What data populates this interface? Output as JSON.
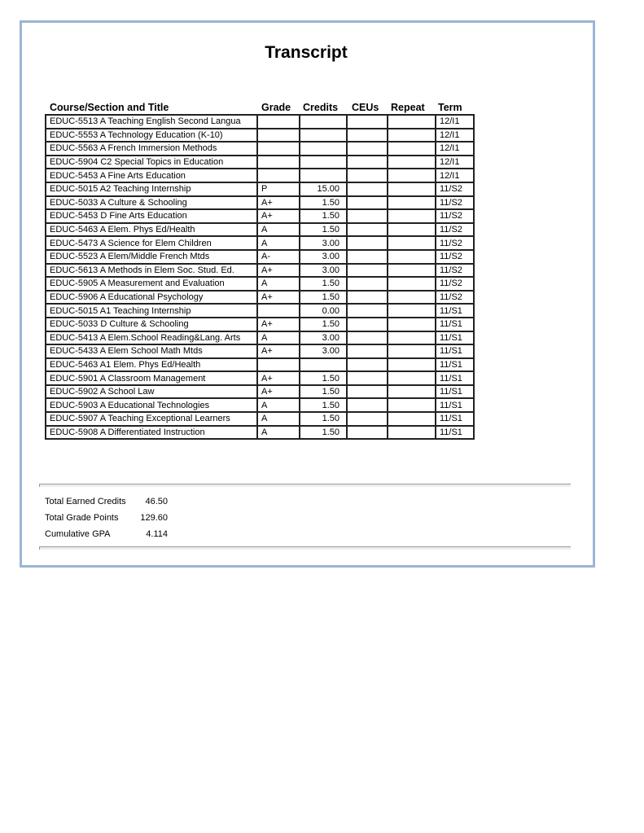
{
  "title": "Transcript",
  "columns": [
    "Course/Section and Title",
    "Grade",
    "Credits",
    "CEUs",
    "Repeat",
    "Term"
  ],
  "rows": [
    [
      "EDUC-5513 A Teaching English Second Langua",
      "",
      "",
      "",
      "",
      "12/I1"
    ],
    [
      "EDUC-5553 A Technology Education (K-10)",
      "",
      "",
      "",
      "",
      "12/I1"
    ],
    [
      "EDUC-5563 A French Immersion Methods",
      "",
      "",
      "",
      "",
      "12/I1"
    ],
    [
      "EDUC-5904 C2 Special Topics in Education",
      "",
      "",
      "",
      "",
      "12/I1"
    ],
    [
      "EDUC-5453 A Fine Arts Education",
      "",
      "",
      "",
      "",
      "12/I1"
    ],
    [
      "EDUC-5015 A2 Teaching Internship",
      "P",
      "15.00",
      "",
      "",
      "11/S2"
    ],
    [
      "EDUC-5033 A Culture & Schooling",
      "A+",
      "1.50",
      "",
      "",
      "11/S2"
    ],
    [
      "EDUC-5453 D Fine Arts Education",
      "A+",
      "1.50",
      "",
      "",
      "11/S2"
    ],
    [
      "EDUC-5463 A Elem. Phys Ed/Health",
      "A",
      "1.50",
      "",
      "",
      "11/S2"
    ],
    [
      "EDUC-5473 A Science for Elem Children",
      "A",
      "3.00",
      "",
      "",
      "11/S2"
    ],
    [
      "EDUC-5523 A Elem/Middle French Mtds",
      "A-",
      "3.00",
      "",
      "",
      "11/S2"
    ],
    [
      "EDUC-5613 A Methods in Elem Soc. Stud. Ed.",
      "A+",
      "3.00",
      "",
      "",
      "11/S2"
    ],
    [
      "EDUC-5905 A Measurement and Evaluation",
      "A",
      "1.50",
      "",
      "",
      "11/S2"
    ],
    [
      "EDUC-5906 A Educational Psychology",
      "A+",
      "1.50",
      "",
      "",
      "11/S2"
    ],
    [
      "EDUC-5015 A1 Teaching Internship",
      "",
      "0.00",
      "",
      "",
      "11/S1"
    ],
    [
      "EDUC-5033 D Culture & Schooling",
      "A+",
      "1.50",
      "",
      "",
      "11/S1"
    ],
    [
      "EDUC-5413 A Elem.School Reading&Lang. Arts",
      "A",
      "3.00",
      "",
      "",
      "11/S1"
    ],
    [
      "EDUC-5433 A Elem School Math Mtds",
      "A+",
      "3.00",
      "",
      "",
      "11/S1"
    ],
    [
      "EDUC-5463 A1 Elem. Phys Ed/Health",
      "",
      "",
      "",
      "",
      "11/S1"
    ],
    [
      "EDUC-5901 A Classroom Management",
      "A+",
      "1.50",
      "",
      "",
      "11/S1"
    ],
    [
      "EDUC-5902 A School Law",
      "A+",
      "1.50",
      "",
      "",
      "11/S1"
    ],
    [
      "EDUC-5903 A Educational Technologies",
      "A",
      "1.50",
      "",
      "",
      "11/S1"
    ],
    [
      "EDUC-5907 A Teaching Exceptional Learners",
      "A",
      "1.50",
      "",
      "",
      "11/S1"
    ],
    [
      "EDUC-5908 A Differentiated Instruction",
      "A",
      "1.50",
      "",
      "",
      "11/S1"
    ]
  ],
  "totals": [
    {
      "label": "Total Earned Credits",
      "value": "46.50"
    },
    {
      "label": "Total Grade Points",
      "value": "129.60"
    },
    {
      "label": "Cumulative GPA",
      "value": "4.114"
    }
  ]
}
